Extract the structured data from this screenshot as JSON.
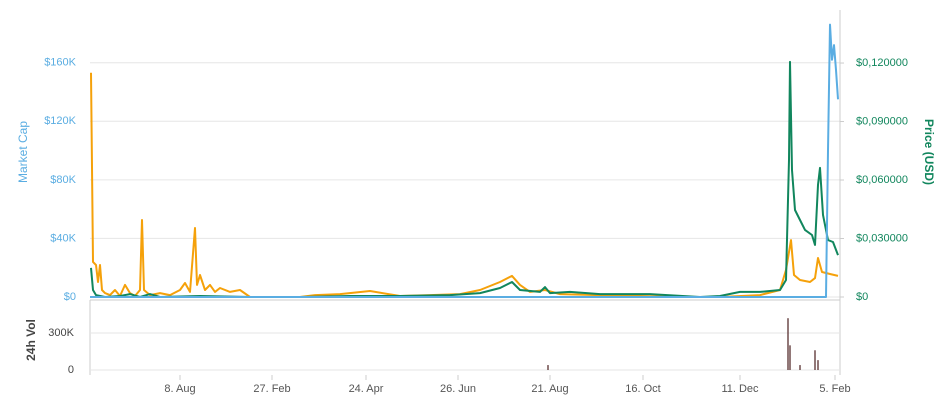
{
  "chart_data": [
    {
      "type": "line",
      "y_label": "Market Cap",
      "y2_label": "Price (USD)",
      "xlim": [
        0,
        150
      ],
      "xticks": [
        {
          "value": 18,
          "label": "8. Aug"
        },
        {
          "value": 36.4,
          "label": "27. Feb"
        },
        {
          "value": 55.2,
          "label": "24. Apr"
        },
        {
          "value": 73.6,
          "label": "26. Jun"
        },
        {
          "value": 92,
          "label": "21. Aug"
        },
        {
          "value": 110.6,
          "label": "16. Oct"
        },
        {
          "value": 130,
          "label": "11. Dec"
        },
        {
          "value": 149,
          "label": "5. Feb"
        }
      ],
      "ylim": [
        0,
        196000
      ],
      "yticks": [
        {
          "value": 0,
          "label": "$0"
        },
        {
          "value": 40000,
          "label": "$40K"
        },
        {
          "value": 80000,
          "label": "$80K"
        },
        {
          "value": 120000,
          "label": "$120K"
        },
        {
          "value": 160000,
          "label": "$160K"
        }
      ],
      "y2lim": [
        0,
        0.1472
      ],
      "y2ticks": [
        {
          "value": 0,
          "label": "$0"
        },
        {
          "value": 0.03,
          "label": "$0,030000"
        },
        {
          "value": 0.06,
          "label": "$0,060000"
        },
        {
          "value": 0.09,
          "label": "$0,090000"
        },
        {
          "value": 0.12,
          "label": "$0,120000"
        }
      ],
      "grid": true,
      "series": [
        {
          "color": "#f5a10a",
          "axis": "y2",
          "x": [
            0.2,
            0.6,
            1.2,
            1.6,
            2,
            2.4,
            3,
            4,
            5,
            6,
            7,
            8,
            9,
            10,
            10.4,
            10.8,
            12,
            14,
            16,
            18,
            19,
            20,
            21,
            21.4,
            22,
            23,
            24,
            25,
            26,
            28,
            30,
            32,
            42,
            45,
            50,
            56,
            62,
            68,
            74,
            78,
            82,
            84.4,
            86,
            88,
            91,
            94,
            102,
            110,
            118,
            126,
            134,
            138,
            139.2,
            140.2,
            140.8,
            142,
            144,
            145,
            145.6,
            146.4,
            148,
            149.6
          ],
          "values": [
            0.115,
            0.018,
            0.0164,
            0.0077,
            0.0164,
            0.0036,
            0.002,
            0.001,
            0.0036,
            0.0005,
            0.0062,
            0.002,
            0.0005,
            0.0036,
            0.0395,
            0.0036,
            0.001,
            0.002,
            0.001,
            0.0036,
            0.0072,
            0.0026,
            0.0354,
            0.0062,
            0.0113,
            0.0036,
            0.0062,
            0.0026,
            0.0046,
            0.0026,
            0.0036,
            0,
            0,
            0.001,
            0.0015,
            0.0031,
            0.0005,
            0.001,
            0.0015,
            0.0036,
            0.0077,
            0.0108,
            0.0062,
            0.0026,
            0.0036,
            0.0015,
            0.001,
            0.0005,
            0,
            0,
            0.001,
            0.0036,
            0.0139,
            0.0292,
            0.0113,
            0.0087,
            0.0077,
            0.0097,
            0.02,
            0.0128,
            0.0118,
            0.0108
          ]
        },
        {
          "color": "#11865d",
          "axis": "y2",
          "x": [
            0.2,
            0.6,
            1.2,
            3,
            6,
            8,
            10,
            12,
            14,
            22,
            32,
            42,
            52,
            62,
            72,
            78,
            82,
            84.4,
            86,
            90,
            91,
            92,
            96,
            102,
            112,
            122,
            126,
            130,
            134,
            138,
            139.2,
            139.8,
            140,
            140.4,
            141,
            142,
            143,
            144.4,
            145,
            145.6,
            146,
            146.6,
            147.6,
            148.6,
            149.6
          ],
          "values": [
            0.0149,
            0.0036,
            0.001,
            0,
            0.0005,
            0.0015,
            0,
            0.0015,
            0,
            0.0005,
            0,
            0,
            0.0005,
            0.0005,
            0.001,
            0.002,
            0.0046,
            0.0077,
            0.0036,
            0.0026,
            0.0051,
            0.002,
            0.0026,
            0.0015,
            0.0015,
            0,
            0.0005,
            0.0026,
            0.0026,
            0.0036,
            0.0087,
            0.0703,
            0.1206,
            0.0651,
            0.0446,
            0.0395,
            0.0344,
            0.0318,
            0.0267,
            0.0575,
            0.0662,
            0.0421,
            0.0292,
            0.0282,
            0.0215
          ]
        },
        {
          "color": "#5aade2",
          "axis": "y",
          "x": [
            0,
            100,
            147.2,
            147.6,
            148,
            148.4,
            148.8,
            149.2,
            149.6
          ],
          "values": [
            0,
            0,
            0,
            100000,
            186000,
            162000,
            172000,
            155000,
            135000
          ]
        }
      ]
    },
    {
      "type": "bar",
      "y_label": "24h Vol",
      "xlim": [
        0,
        150
      ],
      "ylim": [
        0,
        527000
      ],
      "yticks": [
        0,
        {
          "value": 300000,
          "label": "300K"
        }
      ],
      "color": "#6e4b4b",
      "x": [
        91.6,
        139.6,
        140,
        142,
        145,
        145.6
      ],
      "values": [
        40000,
        420000,
        200000,
        40000,
        160000,
        80000
      ]
    }
  ]
}
